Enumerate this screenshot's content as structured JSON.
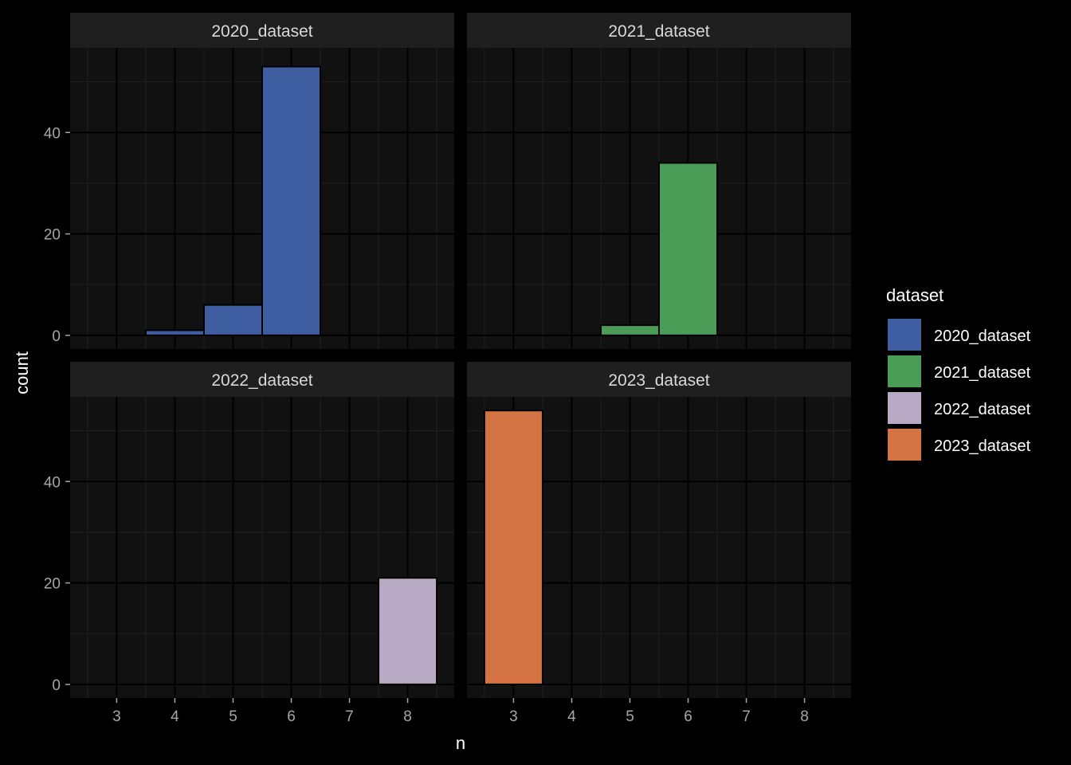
{
  "chart_data": {
    "type": "bar",
    "facet_layout": "2x2 grid",
    "xlabel": "n",
    "ylabel": "count",
    "x_ticks": [
      "3",
      "4",
      "5",
      "6",
      "7",
      "8"
    ],
    "y_ticks": [
      "0",
      "20",
      "40"
    ],
    "xlim": [
      2.2,
      8.8
    ],
    "ylim": [
      -2.7,
      56.7
    ],
    "grid": true,
    "legend": {
      "title": "dataset",
      "position": "right",
      "entries": [
        {
          "label": "2020_dataset",
          "color": "#3e5ea1"
        },
        {
          "label": "2021_dataset",
          "color": "#4a9c56"
        },
        {
          "label": "2022_dataset",
          "color": "#b8a9c5"
        },
        {
          "label": "2023_dataset",
          "color": "#d47344"
        }
      ]
    },
    "panels": [
      {
        "title": "2020_dataset",
        "color": "#3e5ea1",
        "bars": [
          {
            "x": 4,
            "count": 1
          },
          {
            "x": 5,
            "count": 6
          },
          {
            "x": 6,
            "count": 53
          }
        ]
      },
      {
        "title": "2021_dataset",
        "color": "#4a9c56",
        "bars": [
          {
            "x": 5,
            "count": 2
          },
          {
            "x": 6,
            "count": 34
          }
        ]
      },
      {
        "title": "2022_dataset",
        "color": "#b8a9c5",
        "bars": [
          {
            "x": 8,
            "count": 21
          }
        ]
      },
      {
        "title": "2023_dataset",
        "color": "#d47344",
        "bars": [
          {
            "x": 3,
            "count": 54
          }
        ]
      }
    ],
    "colors": {
      "background": "#000000",
      "panel_background": "#111111",
      "strip_background": "#1f1f1f",
      "strip_text": "#d9d9d9",
      "tick_text": "#a6a6a6",
      "axis_title": "#ffffff",
      "grid_major": "#000000",
      "grid_minor": "#202020",
      "bar_outline": "#000000"
    }
  }
}
